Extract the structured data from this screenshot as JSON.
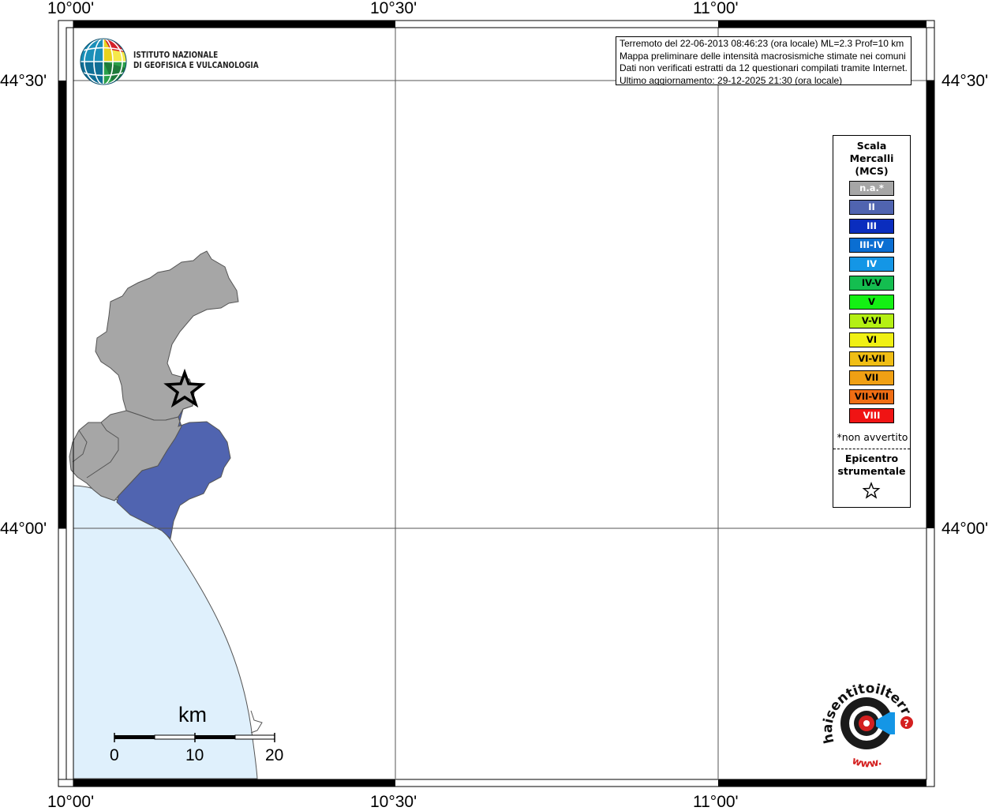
{
  "coords": {
    "top": [
      "10°00'",
      "10°30'",
      "11°00'"
    ],
    "bottom": [
      "10°00'",
      "10°30'",
      "11°00'"
    ],
    "left": [
      "44°30'",
      "44°00'"
    ],
    "right": [
      "44°30'",
      "44°00'"
    ]
  },
  "institute": {
    "line1": "ISTITUTO NAZIONALE",
    "line2": "DI GEOFISICA E VULCANOLOGIA"
  },
  "info": {
    "line1": "Terremoto del 22-06-2013 08:46:23 (ora locale) ML=2.3 Prof=10 km",
    "line2": "Mappa preliminare delle intensità macrosismiche stimate nei comuni",
    "line3": "Dati non verificati estratti da 12 questionari compilati tramite Internet.",
    "line4": "Ultimo aggiornamento: 29-12-2025 21:30 (ora locale)"
  },
  "legend": {
    "title1": "Scala",
    "title2": "Mercalli",
    "title3": "(MCS)",
    "items": [
      {
        "label": "n.a.*",
        "color": "#a6a6a6",
        "text_color": "#ffffff"
      },
      {
        "label": "II",
        "color": "#5064b0",
        "text_color": "#ffffff"
      },
      {
        "label": "III",
        "color": "#0a2dbe",
        "text_color": "#ffffff"
      },
      {
        "label": "III-IV",
        "color": "#0a6ed2",
        "text_color": "#ffffff"
      },
      {
        "label": "IV",
        "color": "#1496e6",
        "text_color": "#ffffff"
      },
      {
        "label": "IV-V",
        "color": "#14be50",
        "text_color": "#000000"
      },
      {
        "label": "V",
        "color": "#14f014",
        "text_color": "#000000"
      },
      {
        "label": "V-VI",
        "color": "#b4f014",
        "text_color": "#000000"
      },
      {
        "label": "VI",
        "color": "#f0f014",
        "text_color": "#000000"
      },
      {
        "label": "VI-VII",
        "color": "#f0be14",
        "text_color": "#000000"
      },
      {
        "label": "VII",
        "color": "#f0a014",
        "text_color": "#000000"
      },
      {
        "label": "VII-VIII",
        "color": "#f06e14",
        "text_color": "#000000"
      },
      {
        "label": "VIII",
        "color": "#f01414",
        "text_color": "#ffffff"
      }
    ],
    "note": "*non avvertito",
    "epi1": "Epicentro",
    "epi2": "strumentale"
  },
  "scalebar": {
    "unit": "km",
    "ticks": [
      "0",
      "10",
      "20"
    ]
  },
  "colors": {
    "sea": "#dff0fc",
    "not_felt": "#a6a6a6",
    "intensity_II": "#5064b0"
  },
  "epicenter_icon": "star-icon",
  "hsit_logo": {
    "text": "haisentitoilterremoto.it",
    "prefix": "www."
  }
}
